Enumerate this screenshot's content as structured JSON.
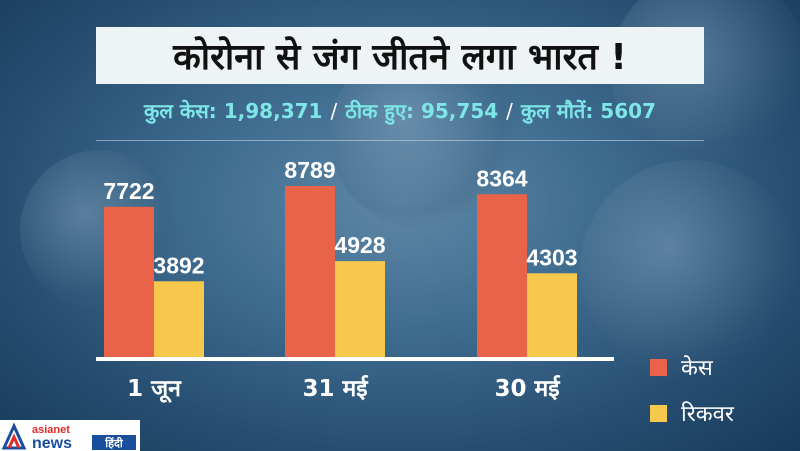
{
  "title": "कोरोना से जंग जीतने लगा भारत !",
  "stats": [
    "कुल केस: 1,98,371",
    "ठीक हुए: 95,754",
    "कुल मौतें: 5607"
  ],
  "colors": {
    "cases": "#e8634a",
    "recovered": "#f6c84c",
    "stats_text": "#7ee6e6"
  },
  "chart_data": {
    "type": "bar",
    "categories": [
      "1 जून",
      "31 मई",
      "30 मई"
    ],
    "series": [
      {
        "name": "केस",
        "values": [
          7722,
          8789,
          8364
        ]
      },
      {
        "name": "रिकवर",
        "values": [
          3892,
          4928,
          4303
        ]
      }
    ],
    "legend_position": "bottom-right"
  },
  "logo": {
    "text_top": "asianet",
    "text_bottom": "news",
    "text_tag": "हिंदी"
  }
}
